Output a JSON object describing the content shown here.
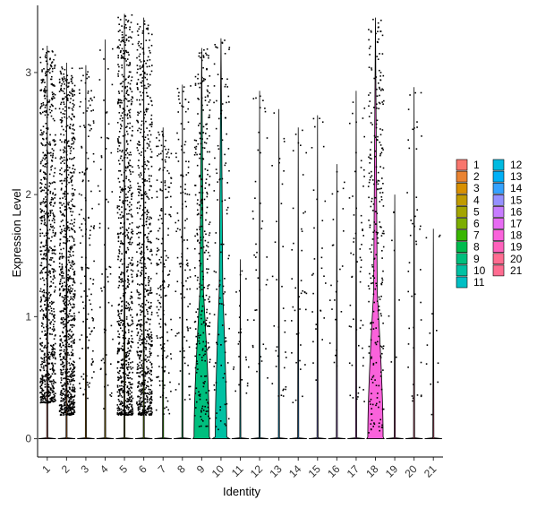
{
  "chart_data": {
    "type": "violin",
    "xlabel": "Identity",
    "ylabel": "Expression Level",
    "categories": [
      "1",
      "2",
      "3",
      "4",
      "5",
      "6",
      "7",
      "8",
      "9",
      "10",
      "11",
      "12",
      "13",
      "14",
      "15",
      "16",
      "17",
      "18",
      "19",
      "20",
      "21"
    ],
    "ylim": [
      -0.15,
      3.55
    ],
    "yticks": [
      0,
      1,
      2,
      3
    ],
    "grid": false,
    "legend_position": "right",
    "colors": [
      "#F8766D",
      "#EA8331",
      "#D89000",
      "#C09B00",
      "#A3A500",
      "#7CAE00",
      "#39B600",
      "#00BB4E",
      "#00BF7D",
      "#00C1A3",
      "#00BFC4",
      "#00BAE0",
      "#00B0F6",
      "#35A2FF",
      "#9590FF",
      "#C77CFF",
      "#E76BF3",
      "#FA62DB",
      "#FF62BC",
      "#FF6C91",
      "#FF6C91"
    ],
    "series": [
      {
        "category": "1",
        "max": 3.22,
        "points_n": 820,
        "points_low": 0.3,
        "points_high": 3.2,
        "violin_width": 0.0
      },
      {
        "category": "2",
        "max": 3.08,
        "points_n": 900,
        "points_low": 0.2,
        "points_high": 3.05,
        "violin_width": 0.0
      },
      {
        "category": "3",
        "max": 3.06,
        "points_n": 150,
        "points_low": 0.3,
        "points_high": 3.05,
        "violin_width": 0.0
      },
      {
        "category": "4",
        "max": 3.27,
        "points_n": 60,
        "points_low": 0.2,
        "points_high": 3.27,
        "violin_width": 0.0
      },
      {
        "category": "5",
        "max": 3.48,
        "points_n": 800,
        "points_low": 0.2,
        "points_high": 3.48,
        "violin_width": 0.0
      },
      {
        "category": "6",
        "max": 3.45,
        "points_n": 720,
        "points_low": 0.2,
        "points_high": 3.45,
        "violin_width": 0.0
      },
      {
        "category": "7",
        "max": 2.55,
        "points_n": 180,
        "points_low": 0.2,
        "points_high": 2.55,
        "violin_width": 0.0
      },
      {
        "category": "8",
        "max": 2.9,
        "points_n": 120,
        "points_low": 0.3,
        "points_high": 2.9,
        "violin_width": 0.0
      },
      {
        "category": "9",
        "max": 3.2,
        "points_n": 300,
        "points_low": 0.1,
        "points_high": 3.2,
        "violin_width": 0.4
      },
      {
        "category": "10",
        "max": 3.28,
        "points_n": 110,
        "points_low": 0.05,
        "points_high": 3.28,
        "violin_width": 0.3
      },
      {
        "category": "11",
        "max": 1.47,
        "points_n": 25,
        "points_low": 0.3,
        "points_high": 1.47,
        "violin_width": 0.0
      },
      {
        "category": "12",
        "max": 2.85,
        "points_n": 40,
        "points_low": 0.5,
        "points_high": 2.85,
        "violin_width": 0.0
      },
      {
        "category": "13",
        "max": 2.7,
        "points_n": 35,
        "points_low": 0.3,
        "points_high": 2.7,
        "violin_width": 0.0
      },
      {
        "category": "14",
        "max": 2.55,
        "points_n": 40,
        "points_low": 0.3,
        "points_high": 2.55,
        "violin_width": 0.0
      },
      {
        "category": "15",
        "max": 2.65,
        "points_n": 30,
        "points_low": 0.3,
        "points_high": 2.65,
        "violin_width": 0.0
      },
      {
        "category": "16",
        "max": 2.25,
        "points_n": 25,
        "points_low": 0.4,
        "points_high": 2.25,
        "violin_width": 0.0
      },
      {
        "category": "17",
        "max": 2.85,
        "points_n": 60,
        "points_low": 0.3,
        "points_high": 2.85,
        "violin_width": 0.0
      },
      {
        "category": "18",
        "max": 3.45,
        "points_n": 260,
        "points_low": 0.05,
        "points_high": 3.45,
        "violin_width": 0.4
      },
      {
        "category": "19",
        "max": 2.0,
        "points_n": 8,
        "points_low": 0.3,
        "points_high": 2.0,
        "violin_width": 0.0
      },
      {
        "category": "20",
        "max": 2.88,
        "points_n": 45,
        "points_low": 0.3,
        "points_high": 2.88,
        "violin_width": 0.0
      },
      {
        "category": "21",
        "max": 1.72,
        "points_n": 12,
        "points_low": 0.15,
        "points_high": 1.72,
        "violin_width": 0.0
      }
    ]
  }
}
